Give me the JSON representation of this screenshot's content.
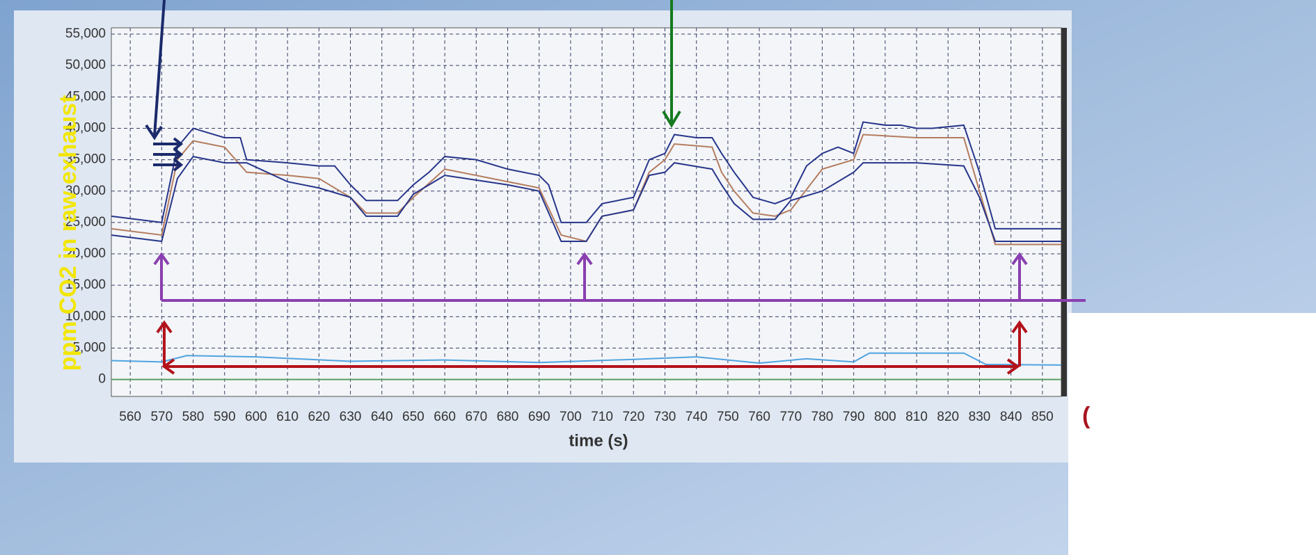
{
  "chart_data": {
    "type": "line",
    "y_label": "ppm CO2 in raw exhaust",
    "x_label": "time (s)",
    "annotation": "(",
    "xlim": [
      554,
      856
    ],
    "ylim": [
      -2700,
      56000
    ],
    "xticks": [
      560,
      570,
      580,
      590,
      600,
      610,
      620,
      630,
      640,
      650,
      660,
      670,
      680,
      690,
      700,
      710,
      720,
      730,
      740,
      750,
      760,
      770,
      780,
      790,
      800,
      810,
      820,
      830,
      840,
      850
    ],
    "yticks": [
      0,
      {
        "value": 5000,
        "label": "5,000"
      },
      {
        "value": 10000,
        "label": "10,000"
      },
      {
        "value": 15000,
        "label": "15,000"
      },
      {
        "value": 20000,
        "label": "20,000"
      },
      {
        "value": 25000,
        "label": "25,000"
      },
      {
        "value": 30000,
        "label": "30,000"
      },
      {
        "value": 35000,
        "label": "35,000"
      },
      {
        "value": 40000,
        "label": "40,000"
      },
      {
        "value": 45000,
        "label": "45,000"
      },
      {
        "value": 50000,
        "label": "50,000"
      },
      {
        "value": 55000,
        "label": "55,000"
      }
    ],
    "grid": true,
    "series": [
      {
        "color": "#27358a",
        "x": [
          554,
          570,
          575,
          580,
          590,
          595,
          597,
          610,
          620,
          625,
          630,
          635,
          645,
          650,
          655,
          660,
          670,
          680,
          690,
          693,
          697,
          705,
          710,
          720,
          725,
          730,
          733,
          740,
          745,
          748,
          752,
          758,
          765,
          770,
          775,
          780,
          785,
          790,
          793,
          800,
          805,
          810,
          815,
          825,
          830,
          835,
          856
        ],
        "values": [
          26000,
          25000,
          37000,
          40000,
          38500,
          38500,
          35000,
          34500,
          34000,
          34000,
          31000,
          28500,
          28500,
          31000,
          33000,
          35500,
          35000,
          33500,
          32500,
          31000,
          25000,
          25000,
          28000,
          29000,
          35000,
          36000,
          39000,
          38500,
          38500,
          36000,
          33000,
          29000,
          28000,
          29000,
          34000,
          36000,
          37000,
          36000,
          41000,
          40500,
          40500,
          40000,
          40000,
          40500,
          33000,
          24000,
          24000
        ]
      },
      {
        "color": "#b47c5e",
        "x": [
          554,
          570,
          575,
          580,
          590,
          597,
          610,
          620,
          630,
          635,
          645,
          650,
          660,
          680,
          690,
          697,
          705,
          710,
          720,
          725,
          730,
          733,
          745,
          748,
          752,
          758,
          765,
          770,
          780,
          790,
          793,
          810,
          825,
          830,
          835,
          856
        ],
        "values": [
          24000,
          23000,
          35000,
          38000,
          37000,
          33000,
          32500,
          32000,
          29000,
          26500,
          26500,
          29000,
          33500,
          31500,
          30500,
          23000,
          22000,
          26000,
          27000,
          33000,
          35000,
          37500,
          37000,
          33000,
          30000,
          26500,
          26000,
          27000,
          33500,
          35000,
          39000,
          38500,
          38500,
          30000,
          21500,
          21500
        ]
      },
      {
        "color": "#27358a",
        "x": [
          554,
          570,
          575,
          580,
          590,
          597,
          610,
          620,
          630,
          635,
          645,
          650,
          660,
          680,
          690,
          697,
          705,
          710,
          720,
          725,
          730,
          733,
          745,
          748,
          752,
          758,
          765,
          770,
          780,
          790,
          793,
          810,
          825,
          830,
          835,
          856
        ],
        "values": [
          23000,
          22000,
          32000,
          35500,
          34500,
          34500,
          31500,
          30500,
          29000,
          26000,
          26000,
          29500,
          32500,
          31000,
          30000,
          22000,
          22000,
          26000,
          27000,
          32500,
          33000,
          34500,
          33500,
          31000,
          28000,
          25500,
          25500,
          28500,
          30000,
          33000,
          34500,
          34500,
          34000,
          29000,
          22000,
          22000
        ]
      },
      {
        "color": "#4fa3e0",
        "x": [
          554,
          570,
          578,
          600,
          630,
          660,
          690,
          720,
          740,
          760,
          775,
          790,
          795,
          825,
          832,
          856
        ],
        "values": [
          3000,
          2800,
          3800,
          3600,
          2900,
          3100,
          2700,
          3200,
          3600,
          2600,
          3300,
          2800,
          4200,
          4200,
          2400,
          2300
        ]
      },
      {
        "color": "#5aa060",
        "x": [
          554,
          856
        ],
        "values": [
          0,
          0
        ]
      }
    ]
  }
}
